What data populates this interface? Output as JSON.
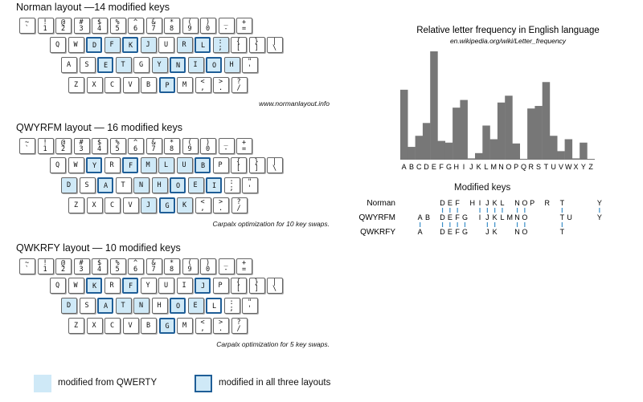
{
  "layouts": [
    {
      "title": "Norman layout —14 modified keys",
      "note": "www.normanlayout.info",
      "rows": [
        [
          [
            "~",
            "`"
          ],
          [
            "!",
            "1"
          ],
          [
            "@",
            "2"
          ],
          [
            "#",
            "3"
          ],
          [
            "$",
            "4"
          ],
          [
            "%",
            "5"
          ],
          [
            "^",
            "6"
          ],
          [
            "&",
            "7"
          ],
          [
            "*",
            "8"
          ],
          [
            "(",
            "9"
          ],
          [
            ")",
            "0"
          ],
          [
            "_",
            "-"
          ],
          [
            "+",
            "="
          ]
        ],
        [
          [
            "",
            "Q"
          ],
          [
            "",
            "W"
          ],
          [
            "",
            "D"
          ],
          [
            "",
            "F"
          ],
          [
            "",
            "K"
          ],
          [
            "",
            "J"
          ],
          [
            "",
            "U"
          ],
          [
            "",
            "R"
          ],
          [
            "",
            "L"
          ],
          [
            ":",
            ";"
          ],
          [
            "{",
            "["
          ],
          [
            "}",
            "]"
          ],
          [
            "|",
            "\\"
          ]
        ],
        [
          [
            "",
            "A"
          ],
          [
            "",
            "S"
          ],
          [
            "",
            "E"
          ],
          [
            "",
            "T"
          ],
          [
            "",
            "G"
          ],
          [
            "",
            "Y"
          ],
          [
            "",
            "N"
          ],
          [
            "",
            "I"
          ],
          [
            "",
            "O"
          ],
          [
            "",
            "H"
          ],
          [
            "\"",
            "'"
          ]
        ],
        [
          [
            "",
            "Z"
          ],
          [
            "",
            "X"
          ],
          [
            "",
            "C"
          ],
          [
            "",
            "V"
          ],
          [
            "",
            "B"
          ],
          [
            "",
            "P"
          ],
          [
            "",
            "M"
          ],
          [
            "<",
            ","
          ],
          [
            ">",
            "."
          ],
          [
            "?",
            "/"
          ]
        ]
      ],
      "modified": [
        [],
        [
          2,
          3,
          4,
          5,
          7,
          8,
          9
        ],
        [
          2,
          3,
          5,
          6,
          7,
          8,
          9
        ],
        [
          5
        ]
      ],
      "all": [
        [],
        [
          2,
          4,
          8
        ],
        [
          2,
          6,
          8
        ],
        [
          5
        ]
      ]
    },
    {
      "title": "QWYRFM layout — 16 modified keys",
      "note": "Carpalx optimization for 10 key swaps.",
      "rows": [
        [
          [
            "~",
            "`"
          ],
          [
            "!",
            "1"
          ],
          [
            "@",
            "2"
          ],
          [
            "#",
            "3"
          ],
          [
            "$",
            "4"
          ],
          [
            "%",
            "5"
          ],
          [
            "^",
            "6"
          ],
          [
            "&",
            "7"
          ],
          [
            "*",
            "8"
          ],
          [
            "(",
            "9"
          ],
          [
            ")",
            "0"
          ],
          [
            "_",
            "-"
          ],
          [
            "+",
            "="
          ]
        ],
        [
          [
            "",
            "Q"
          ],
          [
            "",
            "W"
          ],
          [
            "",
            "Y"
          ],
          [
            "",
            "R"
          ],
          [
            "",
            "F"
          ],
          [
            "",
            "M"
          ],
          [
            "",
            "L"
          ],
          [
            "",
            "U"
          ],
          [
            "",
            "B"
          ],
          [
            "",
            "P"
          ],
          [
            "{",
            "["
          ],
          [
            "}",
            "]"
          ],
          [
            "|",
            "\\"
          ]
        ],
        [
          [
            "",
            "D"
          ],
          [
            "",
            "S"
          ],
          [
            "",
            "A"
          ],
          [
            "",
            "T"
          ],
          [
            "",
            "N"
          ],
          [
            "",
            "H"
          ],
          [
            "",
            "O"
          ],
          [
            "",
            "E"
          ],
          [
            "",
            "I"
          ],
          [
            ":",
            ";"
          ],
          [
            "\"",
            "'"
          ]
        ],
        [
          [
            "",
            "Z"
          ],
          [
            "",
            "X"
          ],
          [
            "",
            "C"
          ],
          [
            "",
            "V"
          ],
          [
            "",
            "J"
          ],
          [
            "",
            "G"
          ],
          [
            "",
            "K"
          ],
          [
            "<",
            ","
          ],
          [
            ">",
            "."
          ],
          [
            "?",
            "/"
          ]
        ]
      ],
      "modified": [
        [],
        [
          2,
          4,
          5,
          6,
          7,
          8
        ],
        [
          0,
          2,
          4,
          5,
          6,
          7,
          8
        ],
        [
          4,
          5,
          6
        ]
      ],
      "all": [
        [],
        [
          2,
          4,
          8
        ],
        [
          2,
          6,
          8
        ],
        [
          5
        ]
      ]
    },
    {
      "title": "QWKRFY layout — 10 modified keys",
      "note": "Carpalx optimization for 5 key swaps.",
      "rows": [
        [
          [
            "~",
            "`"
          ],
          [
            "!",
            "1"
          ],
          [
            "@",
            "2"
          ],
          [
            "#",
            "3"
          ],
          [
            "$",
            "4"
          ],
          [
            "%",
            "5"
          ],
          [
            "^",
            "6"
          ],
          [
            "&",
            "7"
          ],
          [
            "*",
            "8"
          ],
          [
            "(",
            "9"
          ],
          [
            ")",
            "0"
          ],
          [
            "_",
            "-"
          ],
          [
            "+",
            "="
          ]
        ],
        [
          [
            "",
            "Q"
          ],
          [
            "",
            "W"
          ],
          [
            "",
            "K"
          ],
          [
            "",
            "R"
          ],
          [
            "",
            "F"
          ],
          [
            "",
            "Y"
          ],
          [
            "",
            "U"
          ],
          [
            "",
            "I"
          ],
          [
            "",
            "J"
          ],
          [
            "",
            "P"
          ],
          [
            "{",
            "["
          ],
          [
            "}",
            "]"
          ],
          [
            "|",
            "\\"
          ]
        ],
        [
          [
            "",
            "D"
          ],
          [
            "",
            "S"
          ],
          [
            "",
            "A"
          ],
          [
            "",
            "T"
          ],
          [
            "",
            "N"
          ],
          [
            "",
            "H"
          ],
          [
            "",
            "O"
          ],
          [
            "",
            "E"
          ],
          [
            "",
            "L"
          ],
          [
            ":",
            ";"
          ],
          [
            "\"",
            "'"
          ]
        ],
        [
          [
            "",
            "Z"
          ],
          [
            "",
            "X"
          ],
          [
            "",
            "C"
          ],
          [
            "",
            "V"
          ],
          [
            "",
            "B"
          ],
          [
            "",
            "G"
          ],
          [
            "",
            "M"
          ],
          [
            "<",
            ","
          ],
          [
            ">",
            "."
          ],
          [
            "?",
            "/"
          ]
        ]
      ],
      "modified": [
        [],
        [
          2,
          4,
          8
        ],
        [
          0,
          2,
          3,
          4,
          6,
          7
        ],
        [
          5
        ]
      ],
      "all": [
        [],
        [
          2,
          4,
          8
        ],
        [
          2,
          6,
          8
        ],
        [
          5
        ]
      ]
    }
  ],
  "legend": {
    "modified_label": "modified from QWERTY",
    "all_label": "modified in all three layouts",
    "modified_color": "#cfe9f7",
    "all_border_color": "#1f5e97"
  },
  "chart_data": {
    "type": "bar",
    "title": "Relative letter frequency in English language",
    "subtitle": "en.wikipedia.org/wiki/Letter_frequency",
    "categories": [
      "A",
      "B",
      "C",
      "D",
      "E",
      "F",
      "G",
      "H",
      "I",
      "J",
      "K",
      "L",
      "M",
      "N",
      "O",
      "P",
      "Q",
      "R",
      "S",
      "T",
      "U",
      "V",
      "W",
      "X",
      "Y",
      "Z"
    ],
    "values": [
      8.2,
      1.5,
      2.8,
      4.3,
      12.7,
      2.2,
      2.0,
      6.1,
      7.0,
      0.15,
      0.77,
      4.0,
      2.4,
      6.7,
      7.5,
      1.9,
      0.1,
      6.0,
      6.3,
      9.1,
      2.8,
      1.0,
      2.4,
      0.15,
      2.0,
      0.07
    ],
    "ylim": [
      0,
      12.7
    ],
    "grid": false,
    "bar_color": "#777777"
  },
  "modified_keys": {
    "title": "Modified keys",
    "rows": [
      {
        "name": "Norman",
        "letters": [
          "D",
          "E",
          "F",
          "H",
          "I",
          "J",
          "K",
          "L",
          "N",
          "O",
          "P",
          "R",
          "T",
          "Y"
        ]
      },
      {
        "name": "QWYRFM",
        "letters": [
          "A",
          "B",
          "D",
          "E",
          "F",
          "G",
          "I",
          "J",
          "K",
          "L",
          "M",
          "N",
          "O",
          "T",
          "U",
          "Y"
        ]
      },
      {
        "name": "QWKRFY",
        "letters": [
          "A",
          "D",
          "E",
          "F",
          "G",
          "J",
          "K",
          "N",
          "O",
          "T"
        ]
      }
    ],
    "tick_color": "#3a8fc8"
  }
}
